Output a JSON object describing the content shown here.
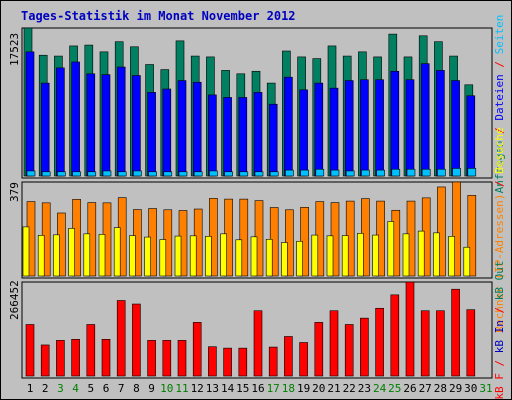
{
  "chart_data": {
    "type": "bar",
    "title": "Tages-Statistik im Monat November 2012",
    "categories": [
      "1",
      "2",
      "3",
      "4",
      "5",
      "6",
      "7",
      "8",
      "9",
      "10",
      "11",
      "12",
      "13",
      "14",
      "15",
      "16",
      "17",
      "18",
      "19",
      "20",
      "21",
      "22",
      "23",
      "24",
      "25",
      "26",
      "27",
      "28",
      "29",
      "30",
      "31"
    ],
    "weekend_days": [
      "3",
      "4",
      "10",
      "11",
      "17",
      "18",
      "24",
      "25",
      "31"
    ],
    "colors": {
      "anfragen": "#008060",
      "dateien": "#0000ff",
      "seiten": "#00c0ff",
      "rechner": "#ff8000",
      "besuche": "#ffff00",
      "kb_in": "#0000c0",
      "kb_out": "#008060",
      "kb_f": "#ff0000",
      "weekday_label": "#000000",
      "weekend_label": "#008000"
    },
    "panels": [
      {
        "ymax_label": "17523",
        "ylim": [
          0,
          17523
        ],
        "legend": [
          {
            "text": "Anfragen",
            "color": "#008060"
          },
          {
            "text": " / ",
            "color": "#ff0000"
          },
          {
            "text": "Dateien",
            "color": "#0000ff"
          },
          {
            "text": " / ",
            "color": "#ff0000"
          },
          {
            "text": "Seiten",
            "color": "#00c0ff"
          }
        ],
        "series": [
          {
            "name": "Anfragen",
            "values": [
              17523,
              14300,
              14200,
              15400,
              15500,
              14700,
              15900,
              15300,
              13200,
              12600,
              16000,
              14200,
              14100,
              12500,
              12100,
              12400,
              11000,
              14800,
              14100,
              13900,
              15400,
              14200,
              14700,
              14100,
              16800,
              14100,
              16600,
              15900,
              14200,
              10800,
              0
            ]
          },
          {
            "name": "Dateien",
            "values": [
              14700,
              11000,
              12800,
              13500,
              12100,
              12000,
              12900,
              11900,
              9900,
              10300,
              11300,
              11100,
              9600,
              9300,
              9300,
              9900,
              8500,
              11700,
              10200,
              11000,
              10400,
              11300,
              11400,
              11400,
              12400,
              11400,
              13300,
              12500,
              11300,
              9500,
              0
            ]
          },
          {
            "name": "Seiten",
            "values": [
              600,
              500,
              500,
              500,
              500,
              600,
              500,
              600,
              500,
              500,
              500,
              500,
              600,
              500,
              500,
              500,
              500,
              700,
              700,
              800,
              700,
              600,
              700,
              700,
              800,
              800,
              800,
              800,
              900,
              900,
              0
            ]
          }
        ]
      },
      {
        "ymax_label": "379",
        "ylim": [
          0,
          379
        ],
        "legend": [
          {
            "text": "Rechner (IP-Adressen)",
            "color": "#ff8000"
          },
          {
            "text": " / ",
            "color": "#ff0000"
          },
          {
            "text": "Besuche",
            "color": "#ffff00"
          }
        ],
        "series": [
          {
            "name": "Rechner (IP-Adressen)",
            "values": [
              300,
              295,
              254,
              309,
              296,
              295,
              316,
              268,
              272,
              267,
              264,
              270,
              313,
              310,
              310,
              304,
              276,
              267,
              277,
              300,
              296,
              302,
              312,
              302,
              265,
              302,
              315,
              359,
              379,
              325,
              0
            ]
          },
          {
            "name": "Besuche",
            "values": [
              198,
              164,
              166,
              192,
              170,
              168,
              195,
              163,
              157,
              147,
              161,
              162,
              160,
              170,
              146,
              158,
              148,
              135,
              140,
              165,
              162,
              163,
              172,
              165,
              220,
              170,
              181,
              174,
              160,
              116,
              0
            ]
          }
        ]
      },
      {
        "ymax_label": "266452",
        "ylim": [
          0,
          266452
        ],
        "legend": [
          {
            "text": "kB F",
            "color": "#ff0000"
          },
          {
            "text": " / ",
            "color": "#ff0000"
          },
          {
            "text": "kB In",
            "color": "#0000c0"
          },
          {
            "text": " / ",
            "color": "#ff0000"
          },
          {
            "text": "kB Out",
            "color": "#008060"
          }
        ],
        "series": [
          {
            "name": "kB F",
            "values": [
              146000,
              88000,
              101000,
              104000,
              146000,
              104000,
              214000,
              204000,
              101000,
              101000,
              101000,
              152000,
              83000,
              79000,
              79000,
              185000,
              82000,
              112000,
              95000,
              152000,
              185000,
              146000,
              164000,
              192000,
              230000,
              266452,
              185000,
              185000,
              246000,
              188000,
              0
            ]
          }
        ]
      }
    ]
  }
}
